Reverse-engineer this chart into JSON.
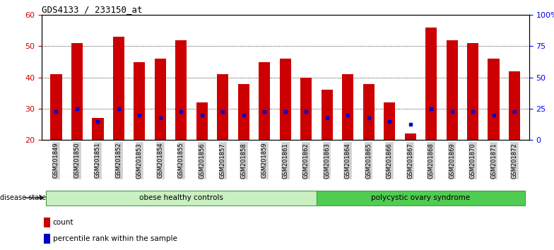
{
  "title": "GDS4133 / 233150_at",
  "samples": [
    "GSM201849",
    "GSM201850",
    "GSM201851",
    "GSM201852",
    "GSM201853",
    "GSM201854",
    "GSM201855",
    "GSM201856",
    "GSM201857",
    "GSM201858",
    "GSM201859",
    "GSM201861",
    "GSM201862",
    "GSM201863",
    "GSM201864",
    "GSM201865",
    "GSM201866",
    "GSM201867",
    "GSM201868",
    "GSM201869",
    "GSM201870",
    "GSM201871",
    "GSM201872"
  ],
  "counts": [
    41,
    51,
    27,
    53,
    45,
    46,
    52,
    32,
    41,
    38,
    45,
    46,
    40,
    36,
    41,
    38,
    32,
    22,
    56,
    52,
    51,
    46,
    42
  ],
  "percentiles": [
    29,
    30,
    26,
    30,
    28,
    27,
    29,
    28,
    29,
    28,
    29,
    29,
    29,
    27,
    28,
    27,
    26,
    25,
    30,
    29,
    29,
    28,
    29
  ],
  "group1_label": "obese healthy controls",
  "group1_count": 13,
  "group2_label": "polycystic ovary syndrome",
  "group2_count": 10,
  "disease_state_label": "disease state",
  "bar_color": "#cc0000",
  "dot_color": "#0000cc",
  "ylim_left": [
    20,
    60
  ],
  "ylim_right": [
    0,
    100
  ],
  "yticks_left": [
    20,
    30,
    40,
    50,
    60
  ],
  "yticks_right": [
    0,
    25,
    50,
    75,
    100
  ],
  "yticklabels_right": [
    "0",
    "25",
    "50",
    "75",
    "100%"
  ],
  "legend_count_label": "count",
  "legend_pct_label": "percentile rank within the sample",
  "background_color": "#ffffff",
  "plot_bg_color": "#ffffff",
  "tick_label_bg": "#d0d0d0",
  "group1_color": "#c8f0c0",
  "group2_color": "#50cc50",
  "group_border_color": "#40a040"
}
